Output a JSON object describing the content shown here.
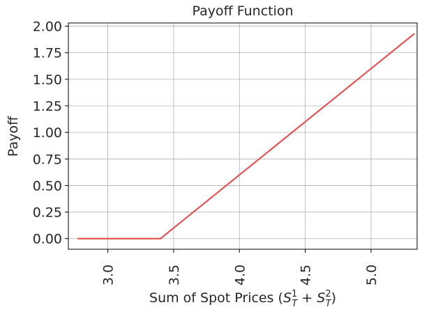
{
  "chart_data": {
    "type": "line",
    "title": "Payoff Function",
    "xlabel_main": "Sum of Spot Prices (",
    "xlabel_math": "S",
    "xlabel_sup1": "1",
    "xlabel_sub1": "T",
    "xlabel_plus": " + ",
    "xlabel_sup2": "2",
    "xlabel_sub2": "T",
    "xlabel_close": ")",
    "ylabel": "Payoff",
    "xlim": [
      2.7,
      5.35
    ],
    "ylim": [
      -0.1,
      2.03
    ],
    "xticks": [
      3.0,
      3.5,
      4.0,
      4.5,
      5.0
    ],
    "xtick_labels": [
      "3.0",
      "3.5",
      "4.0",
      "4.5",
      "5.0"
    ],
    "yticks": [
      0.0,
      0.25,
      0.5,
      0.75,
      1.0,
      1.25,
      1.5,
      1.75,
      2.0
    ],
    "ytick_labels": [
      "0.00",
      "0.25",
      "0.50",
      "0.75",
      "1.00",
      "1.25",
      "1.50",
      "1.75",
      "2.00"
    ],
    "grid": true,
    "series": [
      {
        "color": "#e05454",
        "x": [
          2.77,
          3.4,
          5.33
        ],
        "y": [
          0.0,
          0.0,
          1.93
        ]
      }
    ]
  }
}
